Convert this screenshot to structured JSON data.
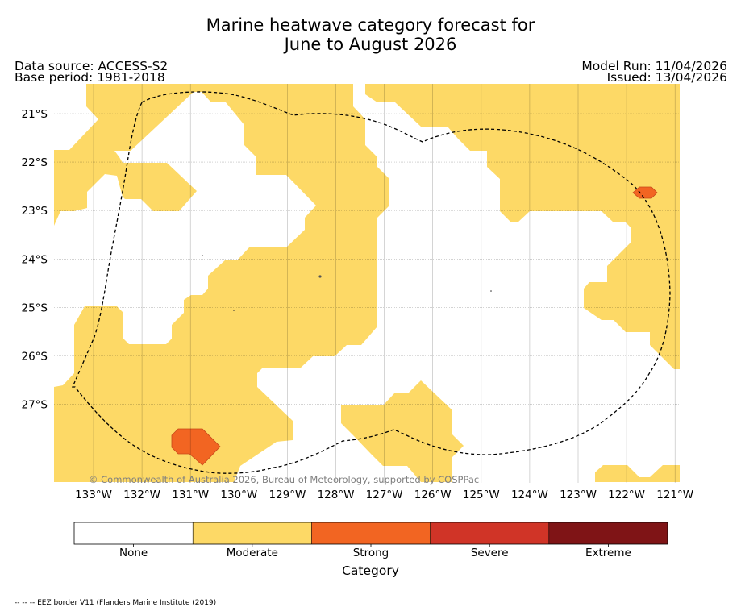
{
  "title_line1": "Marine heatwave category forecast for",
  "title_line2": "June to August 2026",
  "data_source": "Data source: ACCESS-S2",
  "base_period": "Base period: 1981-2018",
  "model_run": "Model Run: 11/04/2026",
  "issued": "Issued: 13/04/2026",
  "copyright": "© Commonwealth of Australia 2026, Bureau of Meteorology, supported by COSPPac",
  "footnote": "-- -- -- EEZ border V11 (Flanders Marine Institute (2019)",
  "map": {
    "lat_labels": [
      "21°S",
      "22°S",
      "23°S",
      "24°S",
      "25°S",
      "26°S",
      "27°S"
    ],
    "lon_labels": [
      "133°W",
      "132°W",
      "131°W",
      "130°W",
      "129°W",
      "128°W",
      "127°W",
      "126°W",
      "125°W",
      "124°W",
      "123°W",
      "122°W",
      "121°W"
    ],
    "lat_values": [
      -21,
      -22,
      -23,
      -24,
      -25,
      -26,
      -27
    ],
    "lon_values": [
      -133,
      -132,
      -131,
      -130,
      -129,
      -128,
      -127,
      -126,
      -125,
      -124,
      -123,
      -122,
      -121
    ],
    "lon_range": [
      -133.8,
      -120.9
    ],
    "lat_range": [
      -20.6,
      -28.8
    ],
    "grid": true,
    "boundary_style": "dashed"
  },
  "legend": {
    "title": "Category",
    "categories": [
      {
        "label": "None",
        "color": "#ffffff"
      },
      {
        "label": "Moderate",
        "color": "#fdd966"
      },
      {
        "label": "Strong",
        "color": "#f26522"
      },
      {
        "label": "Severe",
        "color": "#d03427"
      },
      {
        "label": "Extreme",
        "color": "#7f1416"
      }
    ]
  }
}
